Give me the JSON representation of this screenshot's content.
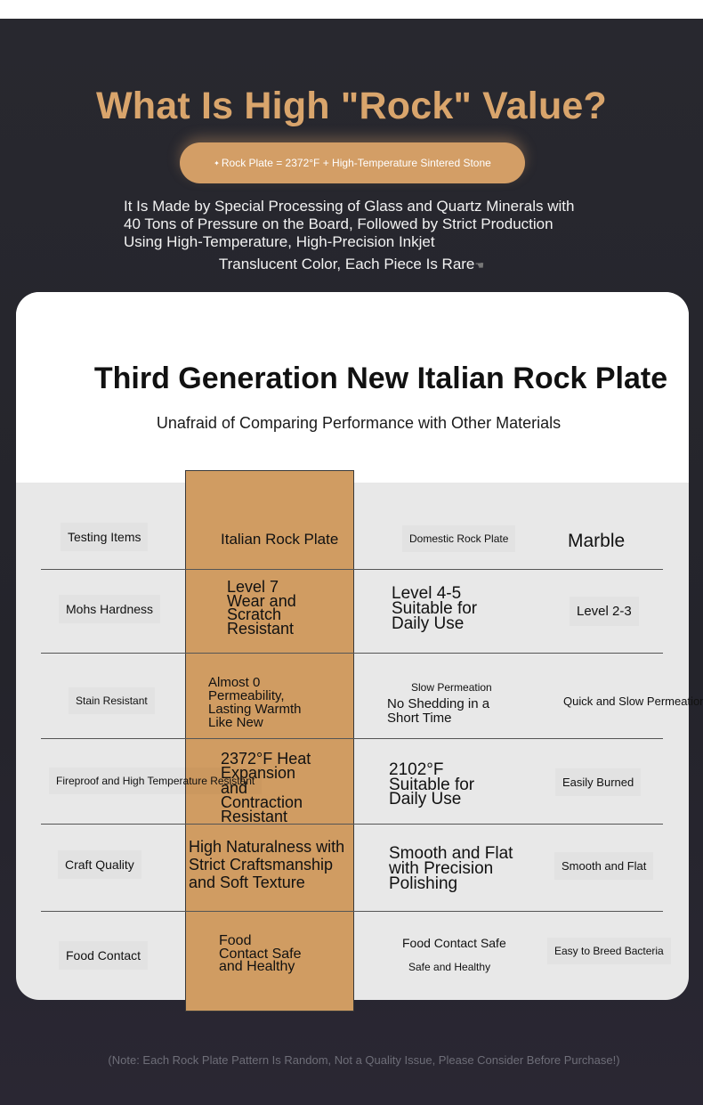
{
  "hero": {
    "title": "What Is High \"Rock\" Value?",
    "pill": "Rock Plate = 2372°F + High-Temperature Sintered Stone",
    "intro": "It Is Made by Special Processing of Glass and Quartz Minerals with 40 Tons of Pressure on the Board, Followed by Strict Production Using High-Temperature, High-Precision Inkjet",
    "intro_last": "Translucent Color, Each Piece Is Rare"
  },
  "card": {
    "title": "Third Generation New Italian Rock Plate",
    "subtitle": "Unafraid of Comparing Performance with Other Materials"
  },
  "table": {
    "headers": [
      "Testing Items",
      "Italian Rock Plate",
      "Domestic Rock Plate",
      "Marble"
    ],
    "rows": [
      {
        "item": "Mohs Hardness",
        "italian": [
          "Level 7",
          "Wear and",
          "Scratch",
          "Resistant"
        ],
        "domestic": [
          "Level 4-5",
          "Suitable for",
          "Daily Use"
        ],
        "marble": "Level 2-3"
      },
      {
        "item": "Stain Resistant",
        "italian": [
          "Almost 0",
          "Permeability,",
          "Lasting Warmth",
          "Like New"
        ],
        "domestic_top": "Slow Permeation",
        "domestic": [
          "No Shedding in a",
          "Short Time"
        ],
        "marble": "Quick and Slow Permeation"
      },
      {
        "item": "Fireproof and High Temperature Resistant",
        "italian": [
          "2372°F Heat",
          "Expansion",
          "and",
          "Contraction",
          "Resistant"
        ],
        "domestic": [
          "2102°F",
          "Suitable for",
          "Daily Use"
        ],
        "marble": "Easily Burned"
      },
      {
        "item": "Craft Quality",
        "italian": [
          "High Naturalness with",
          "Strict Craftsmanship",
          "and Soft Texture"
        ],
        "domestic": [
          "Smooth and Flat",
          "with Precision",
          "Polishing"
        ],
        "marble": "Smooth and Flat"
      },
      {
        "item": "Food Contact",
        "italian": [
          "Food",
          "Contact Safe",
          "and Healthy"
        ],
        "domestic_top": "Food Contact Safe",
        "domestic": [
          "Safe and Healthy"
        ],
        "marble": "Easy to Breed Bacteria"
      }
    ]
  },
  "note": "(Note: Each Rock Plate Pattern Is Random, Not a Quality Issue, Please Consider Before Purchase!)",
  "colors": {
    "accent": "#d9a56c",
    "highlight_column": "#d09c62",
    "background": "#25252d"
  }
}
